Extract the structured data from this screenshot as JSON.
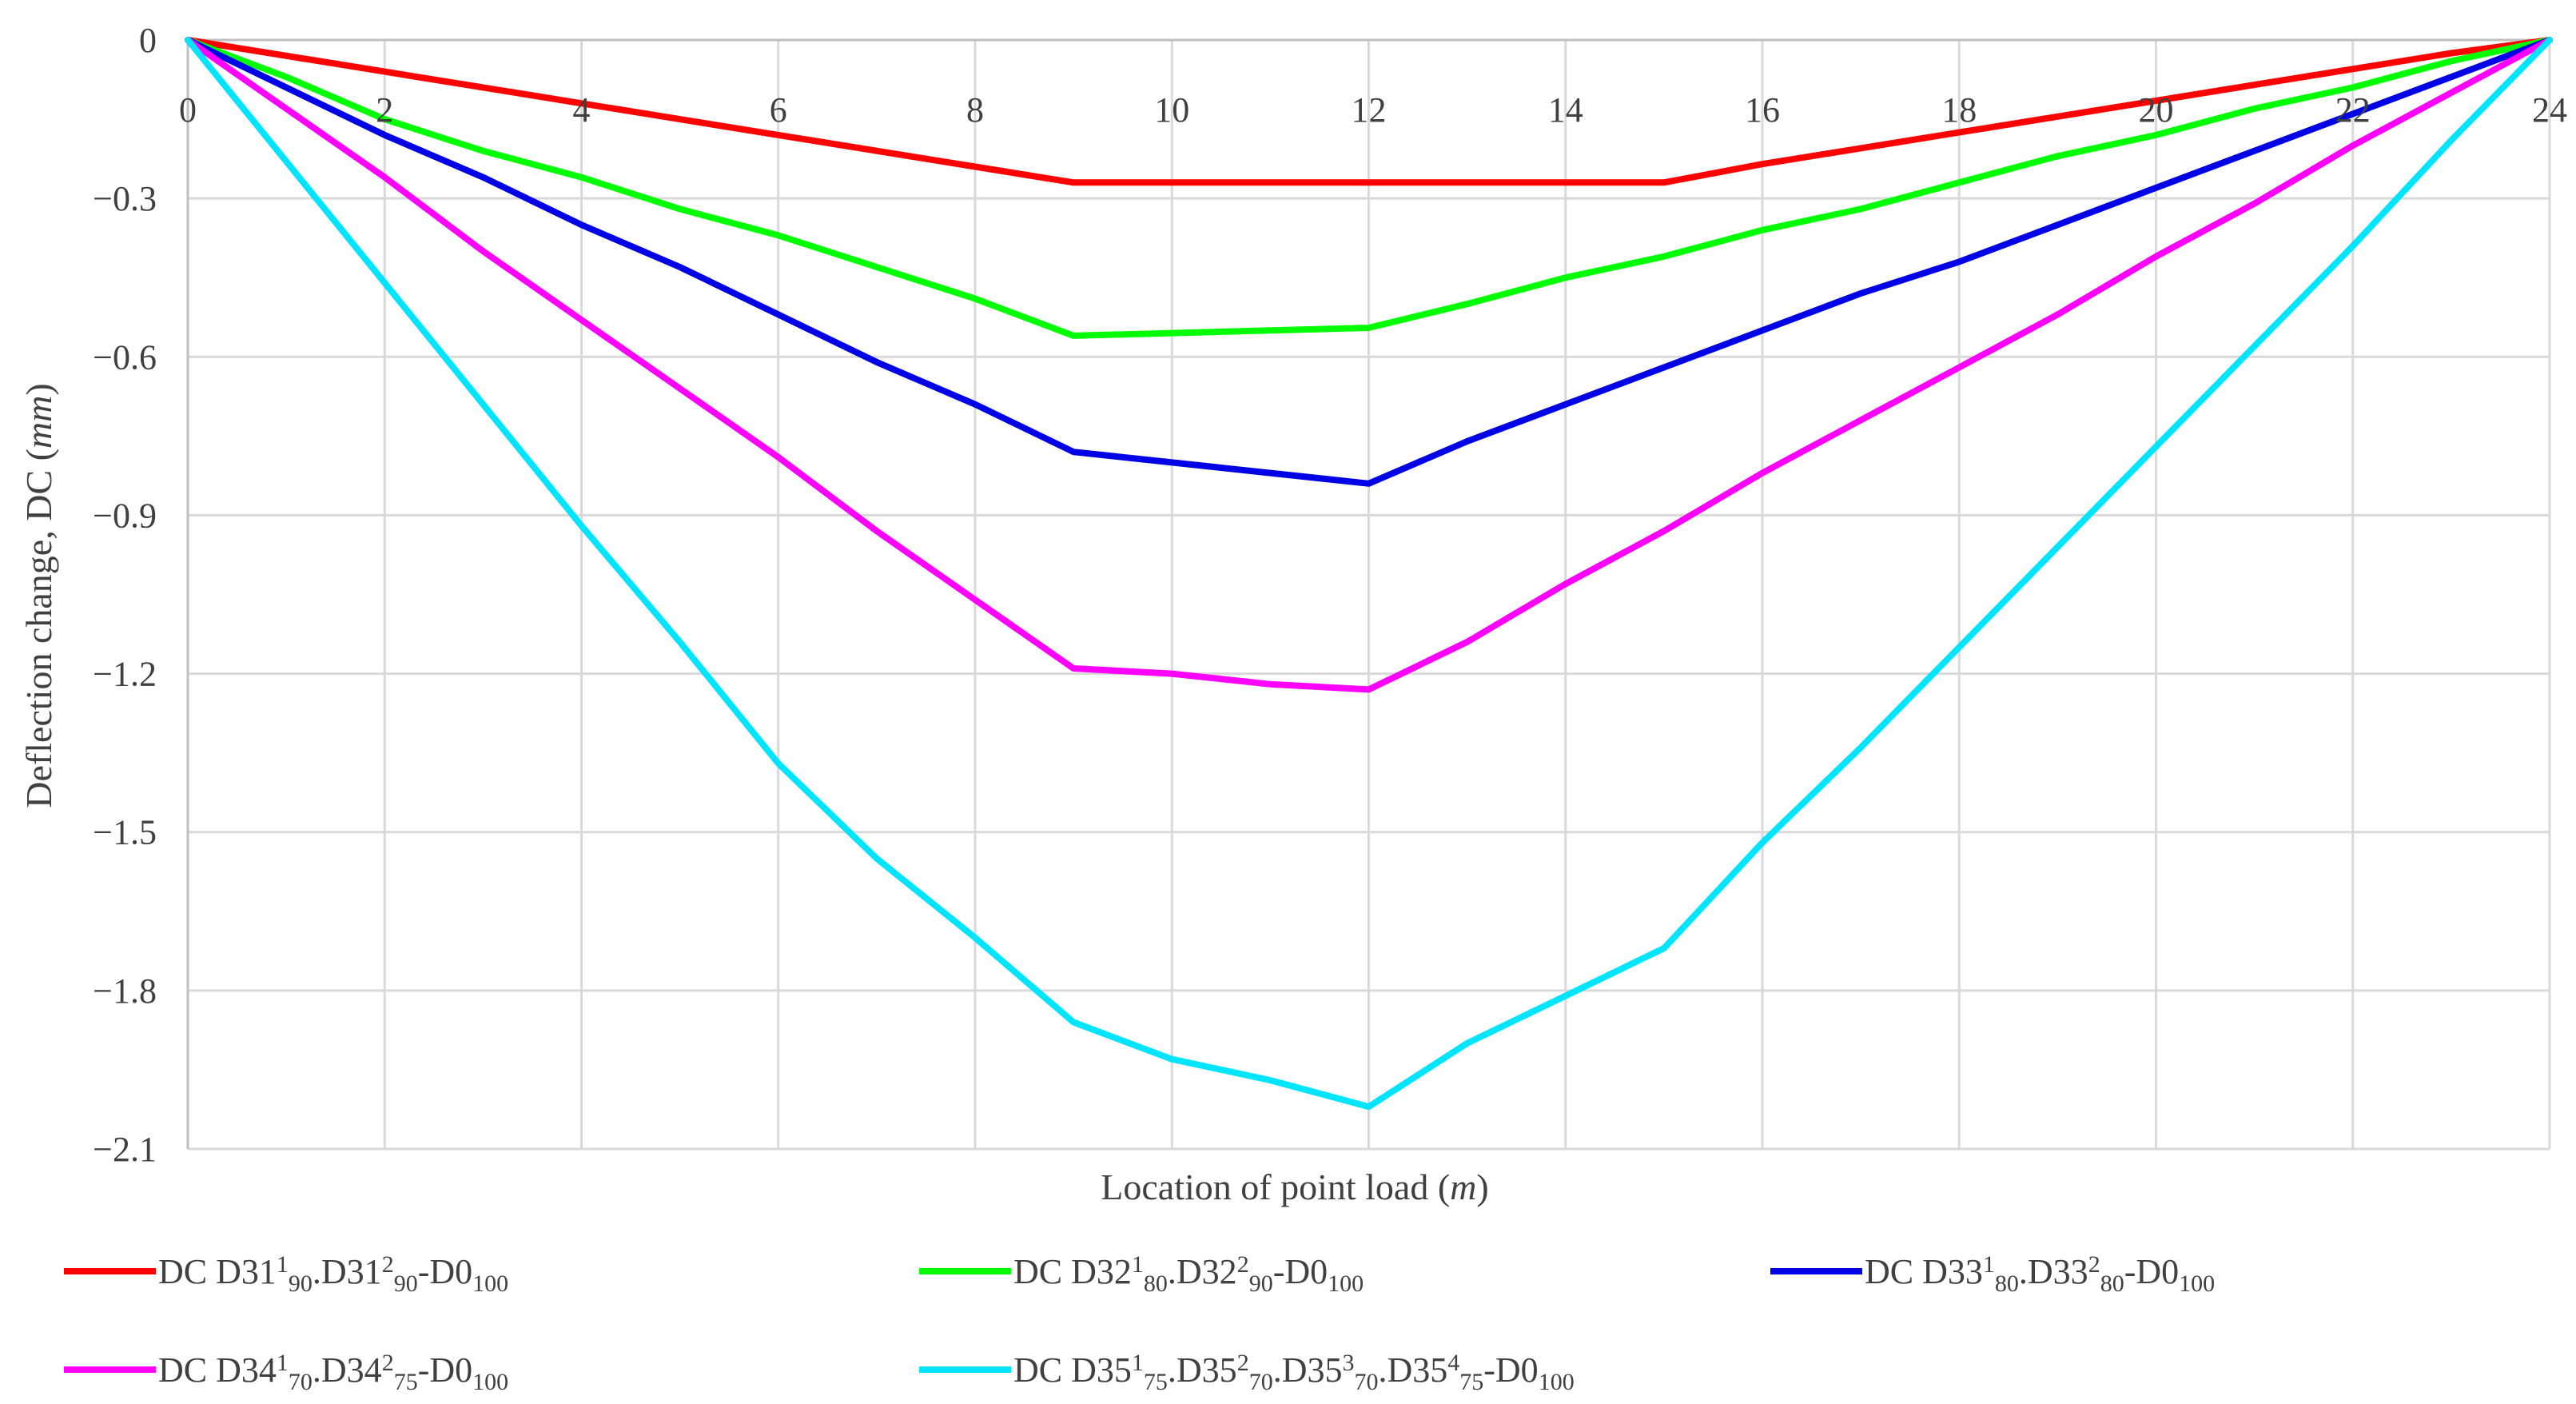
{
  "chart_data": {
    "type": "line",
    "xlabel": "Location of point load (m)",
    "ylabel": "Deflection change, DC (mm)",
    "xlim": [
      0,
      24
    ],
    "ylim": [
      -2.1,
      0
    ],
    "xticks": [
      0,
      2,
      4,
      6,
      8,
      10,
      12,
      14,
      16,
      18,
      20,
      22,
      24
    ],
    "yticks": [
      0,
      -0.3,
      -0.6,
      -0.9,
      -1.2,
      -1.5,
      -1.8,
      -2.1
    ],
    "ytick_labels": [
      "0",
      "−0.3",
      "−0.6",
      "−0.9",
      "−1.2",
      "−1.5",
      "−1.8",
      "−2.1"
    ],
    "grid": true,
    "legend_position": "bottom",
    "series": [
      {
        "name": "DC D31¹₉₀.D31²₉₀-D0₁₀₀",
        "color": "#ff0000",
        "x": [
          0,
          1,
          2,
          3,
          4,
          5,
          6,
          7,
          8,
          9,
          10,
          11,
          12,
          13,
          14,
          15,
          16,
          17,
          18,
          19,
          20,
          21,
          22,
          23,
          24
        ],
        "y": [
          0,
          -0.03,
          -0.06,
          -0.09,
          -0.12,
          -0.15,
          -0.18,
          -0.21,
          -0.24,
          -0.27,
          -0.27,
          -0.27,
          -0.27,
          -0.27,
          -0.27,
          -0.27,
          -0.235,
          -0.205,
          -0.175,
          -0.145,
          -0.115,
          -0.085,
          -0.055,
          -0.025,
          0
        ]
      },
      {
        "name": "DC D32¹₈₀.D32²₉₀-D0₁₀₀",
        "color": "#00ff00",
        "x": [
          0,
          1,
          2,
          3,
          4,
          5,
          6,
          7,
          8,
          9,
          10,
          11,
          12,
          13,
          14,
          15,
          16,
          17,
          18,
          19,
          20,
          21,
          22,
          23,
          24
        ],
        "y": [
          0,
          -0.07,
          -0.15,
          -0.21,
          -0.26,
          -0.32,
          -0.37,
          -0.43,
          -0.49,
          -0.56,
          -0.555,
          -0.55,
          -0.545,
          -0.5,
          -0.45,
          -0.41,
          -0.36,
          -0.32,
          -0.27,
          -0.22,
          -0.18,
          -0.13,
          -0.09,
          -0.04,
          0
        ]
      },
      {
        "name": "DC D33¹₈₀.D33²₈₀-D0₁₀₀",
        "color": "#0000e6",
        "x": [
          0,
          1,
          2,
          3,
          4,
          5,
          6,
          7,
          8,
          9,
          10,
          11,
          12,
          13,
          14,
          15,
          16,
          17,
          18,
          19,
          20,
          21,
          22,
          23,
          24
        ],
        "y": [
          0,
          -0.09,
          -0.18,
          -0.26,
          -0.35,
          -0.43,
          -0.52,
          -0.61,
          -0.69,
          -0.78,
          -0.8,
          -0.82,
          -0.84,
          -0.76,
          -0.69,
          -0.62,
          -0.55,
          -0.48,
          -0.42,
          -0.35,
          -0.28,
          -0.21,
          -0.14,
          -0.07,
          0
        ]
      },
      {
        "name": "DC D34¹₇₀.D34²₇₅-D0₁₀₀",
        "color": "#ff00ff",
        "x": [
          0,
          1,
          2,
          3,
          4,
          5,
          6,
          7,
          8,
          9,
          10,
          11,
          12,
          13,
          14,
          15,
          16,
          17,
          18,
          19,
          20,
          21,
          22,
          23,
          24
        ],
        "y": [
          0,
          -0.13,
          -0.26,
          -0.4,
          -0.53,
          -0.66,
          -0.79,
          -0.93,
          -1.06,
          -1.19,
          -1.2,
          -1.22,
          -1.23,
          -1.14,
          -1.03,
          -0.93,
          -0.82,
          -0.72,
          -0.62,
          -0.52,
          -0.41,
          -0.31,
          -0.2,
          -0.1,
          0
        ]
      },
      {
        "name": "DC D35¹₇₅.D35²₇₀.D35³₇₀.D35⁴₇₅-D0₁₀₀",
        "color": "#00e5ff",
        "x": [
          0,
          1,
          2,
          3,
          4,
          5,
          6,
          7,
          8,
          9,
          10,
          11,
          12,
          13,
          14,
          15,
          16,
          17,
          18,
          19,
          20,
          21,
          22,
          23,
          24
        ],
        "y": [
          0,
          -0.23,
          -0.46,
          -0.69,
          -0.92,
          -1.14,
          -1.37,
          -1.55,
          -1.7,
          -1.86,
          -1.93,
          -1.97,
          -2.02,
          -1.9,
          -1.81,
          -1.72,
          -1.52,
          -1.34,
          -1.15,
          -0.96,
          -0.77,
          -0.58,
          -0.39,
          -0.19,
          0
        ]
      }
    ]
  }
}
